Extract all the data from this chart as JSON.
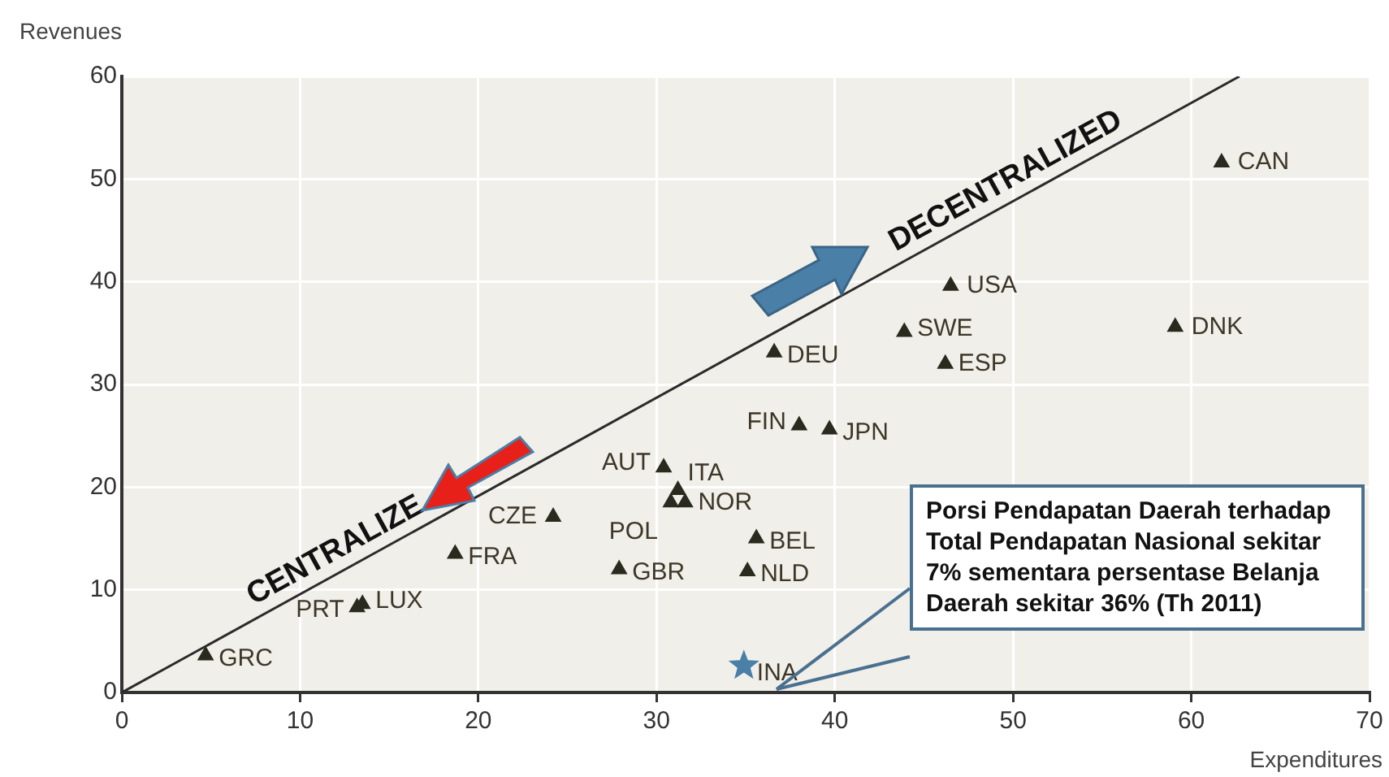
{
  "chart_data": {
    "type": "scatter",
    "xlabel": "Expenditures",
    "ylabel": "Revenues",
    "xlim": [
      0,
      70
    ],
    "ylim": [
      0,
      60
    ],
    "xticks": [
      0,
      10,
      20,
      30,
      40,
      50,
      60,
      70
    ],
    "yticks": [
      0,
      10,
      20,
      30,
      40,
      50,
      60
    ],
    "grid": true,
    "legend": false,
    "marker": "triangle",
    "series": [
      {
        "type": "line",
        "color": "#2b2b2b",
        "marker": "none",
        "x": [
          0,
          62.7
        ],
        "values": [
          0,
          60
        ]
      },
      {
        "name": "GRC",
        "color": "#2b2a1f",
        "x": [
          4.7
        ],
        "values": [
          3.6
        ]
      },
      {
        "name": "PRT",
        "color": "#2b2a1f",
        "x": [
          13.2
        ],
        "values": [
          8.3
        ]
      },
      {
        "name": "LUX",
        "color": "#2b2a1f",
        "x": [
          13.5
        ],
        "values": [
          8.6
        ]
      },
      {
        "name": "FRA",
        "color": "#2b2a1f",
        "x": [
          18.7
        ],
        "values": [
          13.5
        ]
      },
      {
        "name": "CZE",
        "color": "#2b2a1f",
        "x": [
          24.2
        ],
        "values": [
          17.1
        ]
      },
      {
        "name": "GBR",
        "color": "#2b2a1f",
        "x": [
          27.9
        ],
        "values": [
          12
        ]
      },
      {
        "name": "AUT",
        "color": "#2b2a1f",
        "x": [
          30.4
        ],
        "values": [
          21.9
        ]
      },
      {
        "name": "ITA",
        "color": "#2b2a1f",
        "x": [
          31.2
        ],
        "values": [
          19.7
        ]
      },
      {
        "name": "POL",
        "color": "#2b2a1f",
        "x": [
          30.8
        ],
        "values": [
          18.5
        ]
      },
      {
        "name": "NOR",
        "color": "#2b2a1f",
        "x": [
          31.6
        ],
        "values": [
          18.5
        ]
      },
      {
        "name": "BEL",
        "color": "#2b2a1f",
        "x": [
          35.6
        ],
        "values": [
          15
        ]
      },
      {
        "name": "NLD",
        "color": "#2b2a1f",
        "x": [
          35.1
        ],
        "values": [
          11.8
        ]
      },
      {
        "name": "FIN",
        "color": "#2b2a1f",
        "x": [
          38
        ],
        "values": [
          26
        ]
      },
      {
        "name": "JPN",
        "color": "#2b2a1f",
        "x": [
          39.7
        ],
        "values": [
          25.6
        ]
      },
      {
        "name": "DEU",
        "color": "#2b2a1f",
        "x": [
          36.6
        ],
        "values": [
          33.1
        ]
      },
      {
        "name": "SWE",
        "color": "#2b2a1f",
        "x": [
          43.9
        ],
        "values": [
          35.1
        ]
      },
      {
        "name": "ESP",
        "color": "#2b2a1f",
        "x": [
          46.2
        ],
        "values": [
          32
        ]
      },
      {
        "name": "USA",
        "color": "#2b2a1f",
        "x": [
          46.5
        ],
        "values": [
          39.6
        ]
      },
      {
        "name": "DNK",
        "color": "#2b2a1f",
        "x": [
          59.1
        ],
        "values": [
          35.6
        ]
      },
      {
        "name": "CAN",
        "color": "#2b2a1f",
        "x": [
          61.7
        ],
        "values": [
          51.6
        ]
      },
      {
        "name": "INA",
        "color": "#4a7fa8",
        "marker": "star",
        "x": [
          34.9
        ],
        "values": [
          2.6
        ]
      }
    ],
    "annotations": [
      "DECENTRALIZED",
      "CENTRALIZE",
      "Porsi Pendapatan Daerah terhadap Total Pendapatan Nasional sekitar 7% sementara persentase Belanja Daerah sekitar 36% (Th 2011)"
    ]
  }
}
